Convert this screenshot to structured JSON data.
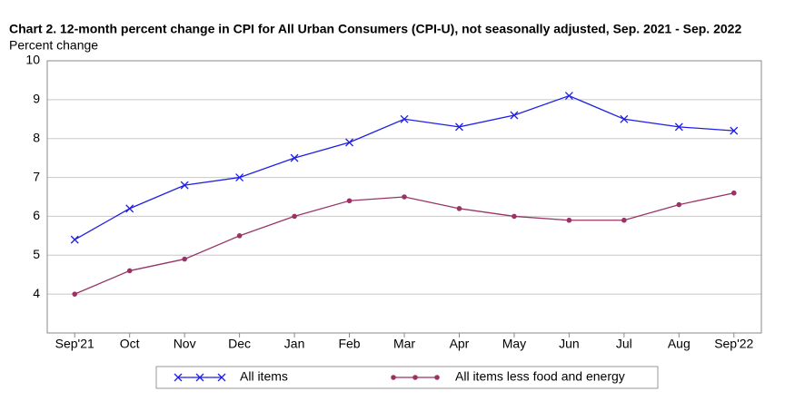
{
  "chart_data": {
    "type": "line",
    "title": "Chart 2. 12-month percent change in CPI for All Urban Consumers (CPI-U), not seasonally adjusted, Sep. 2021 - Sep. 2022",
    "y_label": "Percent change",
    "categories": [
      "Sep'21",
      "Oct",
      "Nov",
      "Dec",
      "Jan",
      "Feb",
      "Mar",
      "Apr",
      "May",
      "Jun",
      "Jul",
      "Aug",
      "Sep'22"
    ],
    "series": [
      {
        "name": "All items",
        "color": "#1f1fe6",
        "marker": "x",
        "values": [
          5.4,
          6.2,
          6.8,
          7.0,
          7.5,
          7.9,
          8.5,
          8.3,
          8.6,
          9.1,
          8.5,
          8.3,
          8.2
        ]
      },
      {
        "name": "All items less food and energy",
        "color": "#993366",
        "marker": "circle",
        "values": [
          4.0,
          4.6,
          4.9,
          5.5,
          6.0,
          6.4,
          6.5,
          6.2,
          6.0,
          5.9,
          5.9,
          6.3,
          6.6
        ]
      }
    ],
    "ylim": [
      3,
      10
    ],
    "yticks": [
      4,
      5,
      6,
      7,
      8,
      9,
      10
    ],
    "grid": true
  }
}
